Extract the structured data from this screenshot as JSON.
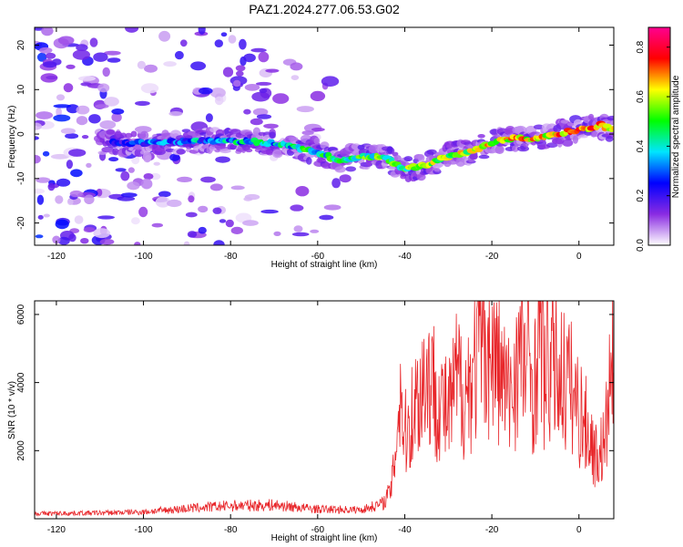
{
  "title": "PAZ1.2024.277.06.53.G02",
  "colors": {
    "snr_line": "#e8262a",
    "frame": "#000000",
    "background": "#ffffff"
  },
  "chart_data": [
    {
      "type": "heatmap",
      "xlabel": "Height of straight line (km)",
      "ylabel": "Frequency (Hz)",
      "xlim": [
        -125,
        8
      ],
      "ylim": [
        -25,
        24
      ],
      "x_ticks": [
        "-120",
        "-100",
        "-80",
        "-60",
        "-40",
        "-20",
        "0"
      ],
      "y_ticks": [
        "-20",
        "-10",
        "0",
        "10",
        "20"
      ],
      "colorbar": {
        "label": "Normalized spectral amplitude",
        "range": [
          0,
          0.88
        ],
        "ticks": [
          "0.0",
          "0.2",
          "0.4",
          "0.6",
          "0.8"
        ],
        "colormap": [
          "#ffffff",
          "#8a2be2",
          "#0000ff",
          "#00e5ff",
          "#00ff00",
          "#ffff00",
          "#ff0000",
          "#ff0090"
        ]
      },
      "ridge": {
        "x": [
          -110,
          -100,
          -90,
          -80,
          -70,
          -60,
          -55,
          -50,
          -45,
          -40,
          -35,
          -30,
          -25,
          -20,
          -15,
          -10,
          -5,
          0,
          5,
          8
        ],
        "y": [
          -2,
          -2,
          -1.5,
          -1.5,
          -2,
          -4,
          -6,
          -5,
          -5,
          -8,
          -7,
          -5,
          -4,
          -2,
          -1,
          -1,
          0,
          1,
          2,
          1
        ]
      }
    },
    {
      "type": "line",
      "xlabel": "Height of straight line (km)",
      "ylabel": "SNR (10 * v/v)",
      "xlim": [
        -125,
        8
      ],
      "ylim": [
        0,
        6400
      ],
      "x_ticks": [
        "-120",
        "-100",
        "-80",
        "-60",
        "-40",
        "-20",
        "0"
      ],
      "y_ticks": [
        "2000",
        "4000",
        "6000"
      ],
      "series": [
        {
          "x": [
            -125,
            -110,
            -100,
            -90,
            -80,
            -70,
            -60,
            -50,
            -45,
            -43,
            -41,
            -40,
            -38,
            -35,
            -32,
            -30,
            -28,
            -26,
            -24,
            -22,
            -20,
            -18,
            -16,
            -14,
            -12,
            -10,
            -9,
            -8,
            -6,
            -4,
            -2,
            0,
            2,
            4,
            6,
            7,
            8
          ],
          "y": [
            150,
            170,
            200,
            300,
            380,
            400,
            280,
            260,
            450,
            900,
            3800,
            2400,
            3200,
            4300,
            3500,
            3000,
            4100,
            3700,
            4400,
            5500,
            4800,
            4300,
            3500,
            4800,
            4500,
            4000,
            6400,
            4200,
            4700,
            4200,
            3900,
            3200,
            2600,
            1800,
            2200,
            3800,
            4600
          ]
        }
      ]
    }
  ]
}
